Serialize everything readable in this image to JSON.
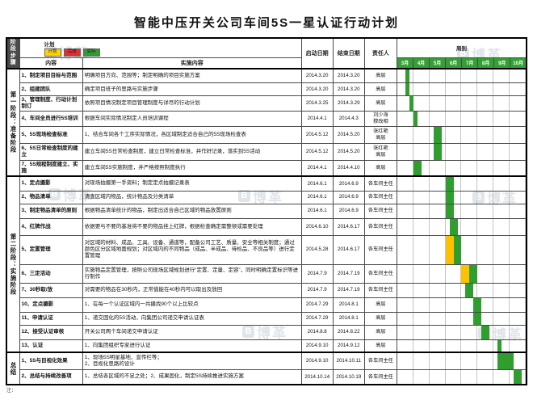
{
  "title": "智能中压开关公司车间5S一星认证行动计划",
  "footer": {
    "note": "注："
  },
  "watermark": {
    "logo": "B",
    "text": "博革"
  },
  "colors": {
    "plan": "#ffc000",
    "actual": "#2f9e2f",
    "done": "#e03030",
    "month_header": "#33a033"
  },
  "header": {
    "stage": "阶段\n步骤",
    "content": "内容",
    "plan": "计划",
    "impl": "实施内容",
    "start": "启动日期",
    "end": "结束日期",
    "owner": "责任人",
    "week": "周别",
    "legend": [
      {
        "label": "计划",
        "color": "#ffd400"
      },
      {
        "label": "完成",
        "color": "#e03030"
      },
      {
        "label": "实际",
        "color": "#2f9e2f"
      }
    ],
    "months": [
      "3月",
      "4月",
      "5月",
      "6月",
      "7月",
      "8月",
      "9月",
      "10月"
    ]
  },
  "stages": [
    {
      "label": "第一阶段：准备阶段",
      "rows": [
        {
          "content": "1、制定项目目标与范围",
          "impl": "明确项目方向、范围等；制定明确的项目实施方案",
          "start": "2014.3.20",
          "end": "2014.3.20",
          "owner": "高层",
          "h": 18,
          "bars": [
            {
              "s": 2,
              "n": 1,
              "c": "actual"
            }
          ]
        },
        {
          "content": "2、组建团队",
          "impl": "确定项目班子的思路与实施步骤",
          "start": "2014.3.20",
          "end": "2014.3.20",
          "owner": "高层",
          "h": 16,
          "bars": [
            {
              "s": 2,
              "n": 1,
              "c": "actual"
            }
          ]
        },
        {
          "content": "3、管理制度、行动计划制订",
          "impl": "依照项目情况制定项目管理制度与详尽的行动计划",
          "start": "2014.3.25",
          "end": "2014.3.29",
          "owner": "高层",
          "h": 18,
          "bars": [
            {
              "s": 3,
              "n": 1,
              "c": "actual"
            }
          ]
        },
        {
          "content": "4、车间全员进行5S培训",
          "impl": "根据车间实际情况制定人员培训课程",
          "start": "2014.4.1",
          "end": "2014.4.3",
          "owner": "刘少海\n穆改相",
          "h": 18,
          "bars": [
            {
              "s": 4,
              "n": 1,
              "c": "actual"
            }
          ]
        },
        {
          "content": "5、5S现场检查标准",
          "impl": "1、结合车间各个工序实际情况，各区域制定适合自己的5S现场检查表",
          "start": "2014.5.12",
          "end": "2014.5.20",
          "owner": "张红艳\n高层",
          "h": 21,
          "bars": [
            {
              "s": 9,
              "n": 2,
              "c": "actual"
            }
          ]
        },
        {
          "content": "6、5S日常检查制度的建立",
          "impl": "建立车间5S日常检查制度，建立日常检查标准，并作好记录，落实到5S活动",
          "start": "2014.5.12",
          "end": "2014.5.20",
          "owner": "张红艳\n高层",
          "h": 21,
          "bars": [
            {
              "s": 9,
              "n": 2,
              "c": "actual"
            }
          ]
        },
        {
          "content": "7、5S规程制度建立、实施",
          "impl": "建立车间5S实施制度，并严格按照制度执行",
          "start": "2014.4.1",
          "end": "2014.4.10",
          "owner": "高层",
          "h": 18,
          "bars": [
            {
              "s": 4,
              "n": 2,
              "c": "actual"
            }
          ]
        }
      ]
    },
    {
      "label": "第二阶段：实施阶段",
      "rows": [
        {
          "content": "1、定点摄影",
          "impl": "对现场拍摄第一手资料；制定定点拍摄记录表",
          "start": "2014.6.1",
          "end": "2014.6.9",
          "owner": "各车间主任",
          "h": 18,
          "bars": [
            {
              "s": 12,
              "n": 2,
              "c": "actual"
            }
          ]
        },
        {
          "content": "2、物品清单",
          "impl": "清查区域内物品，统计物品及分类清单",
          "start": "2014.6.1",
          "end": "2014.6.9",
          "owner": "各车间主任",
          "h": 16,
          "bars": [
            {
              "s": 12,
              "n": 2,
              "c": "actual"
            }
          ]
        },
        {
          "content": "3、制定物品清单的原则",
          "impl": "根据物品清单统计的物品，制定出适合自己区域的物品放置原则",
          "start": "2014.6.1",
          "end": "2014.6.9",
          "owner": "各车间主任",
          "h": 18,
          "bars": [
            {
              "s": 12,
              "n": 2,
              "c": "actual"
            }
          ]
        },
        {
          "content": "4、红牌作战",
          "impl": "依据要与不要的基准将不要的物品挂上红牌，根据检查确定需整顿或需要处理",
          "start": "2014.6.10",
          "end": "2014.6.17",
          "owner": "各车间主任",
          "h": 21,
          "bars": [
            {
              "s": 13,
              "n": 2,
              "c": "actual"
            }
          ]
        },
        {
          "content": "5、定置管理",
          "impl": "对区域的材料、成品、工具、设备、通道等，配备公司工艺、质量、安全等相关制度；通过颜色区分区域地面规划；对区域内的不同物品（成品、半成品、待检品、不良品等）进行定置管理",
          "start": "2014.5.28",
          "end": "2014.6.17",
          "owner": "各车间主任",
          "h": 36,
          "bars": [
            {
              "s": 12,
              "n": 2,
              "c": "plan"
            },
            {
              "s": 14,
              "n": 2,
              "c": "actual"
            }
          ]
        },
        {
          "content": "6、三定活动",
          "impl": "实施物品定置管理，按照公司现场区域规划进行“定置、定量、定容”，同时明确定置标识等进行制作",
          "start": "2014.7.9",
          "end": "2014.7.19",
          "owner": "各车间主任",
          "h": 23,
          "bars": [
            {
              "s": 16,
              "n": 2,
              "c": "plan"
            },
            {
              "s": 18,
              "n": 2,
              "c": "actual"
            }
          ]
        },
        {
          "content": "7、30秒取/放",
          "impl": "对需要的物品在30秒内，正常值能在40秒内可以取出及放回",
          "start": "2014.7.9",
          "end": "2014.7.19",
          "owner": "各车间主任",
          "h": 18,
          "bars": [
            {
              "s": 17,
              "n": 2,
              "c": "actual"
            }
          ]
        },
        {
          "content": "10、定点摄影",
          "impl": "1、在每一个认证区域内一共摄找90个以上比较点",
          "start": "2014.7.29",
          "end": "2014.8.1",
          "owner": "高层",
          "h": 18,
          "bars": [
            {
              "s": 19,
              "n": 2,
              "c": "actual"
            }
          ]
        },
        {
          "content": "11、申请认证",
          "impl": "1、递交固化的5S活动，向集团公司递交申请认证表",
          "start": "2014.7.29",
          "end": "2014.8.1",
          "owner": "高层",
          "h": 16,
          "bars": [
            {
              "s": 19,
              "n": 2,
              "c": "actual"
            }
          ]
        },
        {
          "content": "12、接受认证审核",
          "impl": "开关公司两个车间递交申请认证",
          "start": "2014.8.8",
          "end": "2014.8.22",
          "owner": "高层",
          "h": 18,
          "bars": [
            {
              "s": 21,
              "n": 2,
              "c": "actual"
            }
          ]
        },
        {
          "content": "13、认证",
          "impl": "1、向集团组织专家进行认证",
          "start": "2014.9.10",
          "end": "2014.9.12",
          "owner": "高层",
          "h": 16,
          "bars": [
            {
              "s": 25,
              "n": 1,
              "c": "actual"
            }
          ]
        }
      ]
    },
    {
      "label": "总结",
      "rows": [
        {
          "content": "1、5S与目视化效果",
          "impl": "1、现场5S明星基地、宣传栏等；\n2、目视化思路的设计",
          "start": "2014.9.10",
          "end": "2014.10.11",
          "owner": "各车间主任",
          "h": 21,
          "bars": [
            {
              "s": 25,
              "n": 4,
              "c": "actual"
            }
          ]
        },
        {
          "content": "2、总结与持续改善项",
          "impl": "1、总结各区域的不足之处；2、成果固化，制定5S持续推进实施方案",
          "start": "2014.10.14",
          "end": "2014.10.19",
          "owner": "各车间主任",
          "h": 19,
          "bars": [
            {
              "s": 29,
              "n": 2,
              "c": "actual"
            }
          ]
        }
      ]
    }
  ]
}
